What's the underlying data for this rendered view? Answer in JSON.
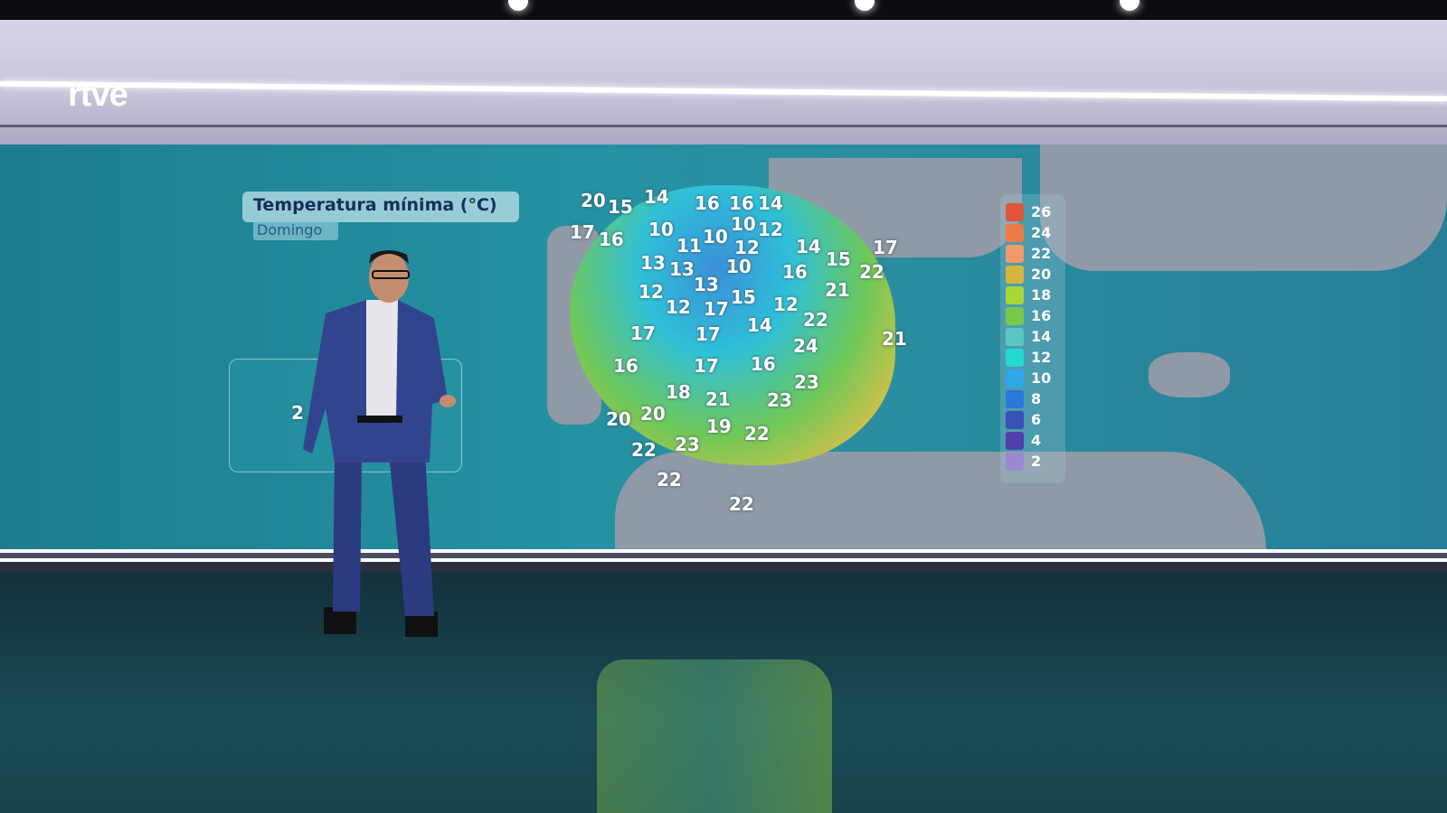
{
  "broadcaster": {
    "logo_text": "rtve"
  },
  "map": {
    "title": "Temperatura mínima (°C)",
    "subtitle": "Domingo",
    "temperatures": [
      "20",
      "15",
      "14",
      "16",
      "16",
      "14",
      "17",
      "16",
      "10",
      "11",
      "10",
      "10",
      "12",
      "12",
      "14",
      "15",
      "17",
      "22",
      "13",
      "13",
      "10",
      "16",
      "21",
      "12",
      "13",
      "15",
      "12",
      "12",
      "17",
      "22",
      "17",
      "17",
      "14",
      "24",
      "16",
      "17",
      "16",
      "23",
      "18",
      "21",
      "23",
      "20",
      "20",
      "19",
      "22",
      "22",
      "23",
      "21",
      "22",
      "22",
      "2"
    ],
    "legend": {
      "values": [
        "26",
        "24",
        "22",
        "20",
        "18",
        "16",
        "14",
        "12",
        "10",
        "8",
        "6",
        "4",
        "2"
      ],
      "colors": [
        "#e0553a",
        "#ee7a48",
        "#f19a6a",
        "#d6b63a",
        "#a8d83a",
        "#7ac84a",
        "#58c8c0",
        "#22d8d0",
        "#2ea8e8",
        "#2a78d8",
        "#3a50b8",
        "#5040a8",
        "#9c88d0"
      ]
    }
  }
}
